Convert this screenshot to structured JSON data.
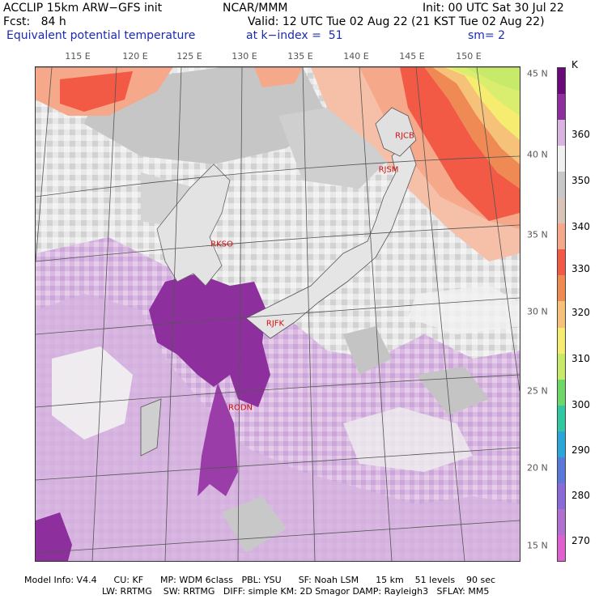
{
  "header": {
    "line1_left": "ACCLIP 15km ARW−GFS init",
    "line1_center": "NCAR/MMM",
    "line1_right": "Init: 00 UTC Sat 30 Jul 22",
    "line2_left": "Fcst:   84 h",
    "line2_right": "Valid: 12 UTC Tue 02 Aug 22 (21 KST Tue 02 Aug 22)",
    "line3_left": "Equivalent potential temperature",
    "line3_center": "at k−index =  51",
    "line3_right": "sm= 2"
  },
  "map": {
    "longitude_labels": [
      "115 E",
      "120 E",
      "125 E",
      "130 E",
      "135 E",
      "140 E",
      "145 E",
      "150 E"
    ],
    "latitude_labels": [
      "45 N",
      "40 N",
      "35 N",
      "30 N",
      "25 N",
      "20 N",
      "15 N"
    ],
    "stations": [
      {
        "id": "RJCB",
        "name": "rjcb-label"
      },
      {
        "id": "RJSM",
        "name": "rjsm-label"
      },
      {
        "id": "RKSO",
        "name": "rkso-label"
      },
      {
        "id": "RJFK",
        "name": "rjfk-label"
      },
      {
        "id": "RODN",
        "name": "rodn-label"
      }
    ]
  },
  "colorbar": {
    "unit": "K",
    "labels": [
      "360",
      "350",
      "340",
      "330",
      "320",
      "310",
      "300",
      "290",
      "280",
      "270"
    ],
    "colors_top_to_bottom": [
      "#6a0a7a",
      "#8e2f9e",
      "#d8b4e0",
      "#f0f0f0",
      "#c8c8c8",
      "#d9c4b8",
      "#f6a88a",
      "#f25a45",
      "#ef8a50",
      "#f6c27a",
      "#f5ec70",
      "#c7ea6a",
      "#6fd66a",
      "#30c8a0",
      "#2aa6d8",
      "#5a78d8",
      "#8a6ad8",
      "#b070d0",
      "#e060d0"
    ]
  },
  "footer": {
    "line1": "Model Info: V4.4      CU: KF      MP: WDM 6class   PBL: YSU      SF: Noah LSM      15 km    51 levels    90 sec",
    "line2": "LW: RRTMG    SW: RRTMG   DIFF: simple KM: 2D Smagor DAMP: Rayleigh3   SFLAY: MM5"
  }
}
